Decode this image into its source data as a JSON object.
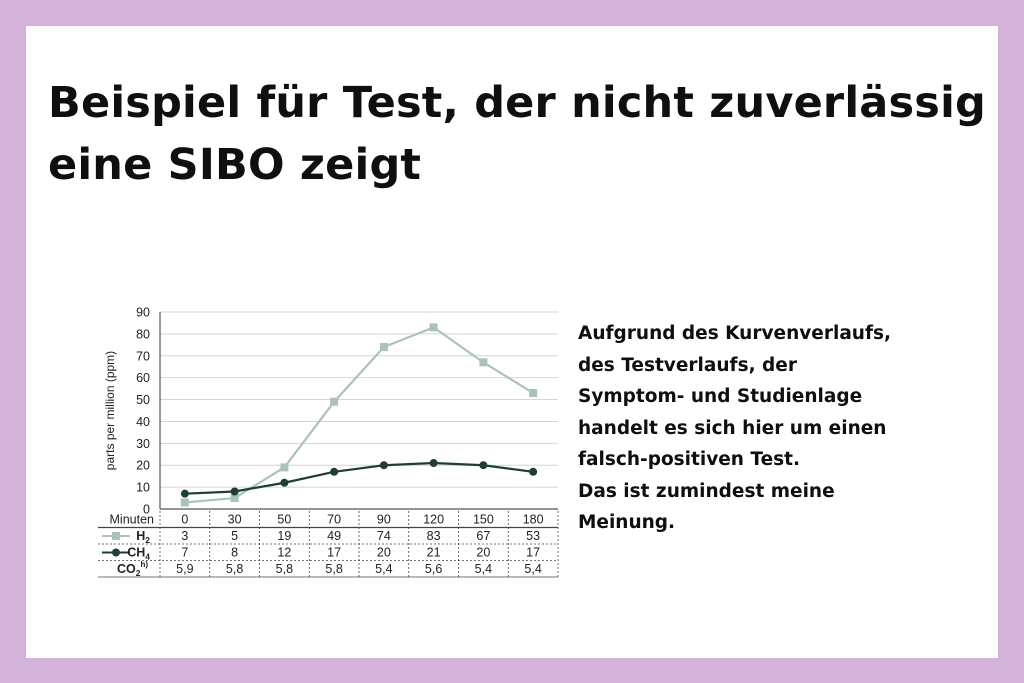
{
  "title": {
    "line1": "Beispiel für Test, der nicht zuverlässig",
    "line2": "eine SIBO zeigt"
  },
  "side_text": {
    "lines": [
      "Aufgrund des Kurvenverlaufs,",
      "des Testverlaufs, der",
      "Symptom- und Studienlage",
      "handelt es sich hier um einen",
      "falsch-positiven Test.",
      "Das ist zumindest meine",
      "Meinung."
    ]
  },
  "chart_data": {
    "type": "line",
    "ylabel": "parts per million (ppm)",
    "xlabel": "Minuten",
    "ylim": [
      0,
      90
    ],
    "yticks": [
      0,
      10,
      20,
      30,
      40,
      50,
      60,
      70,
      80,
      90
    ],
    "grid": true,
    "categories": [
      "0",
      "30",
      "50",
      "70",
      "90",
      "120",
      "150",
      "180"
    ],
    "series": [
      {
        "name": "H",
        "sub": "2",
        "values": [
          3,
          5,
          19,
          49,
          74,
          83,
          67,
          53
        ],
        "color": "#a9c4b5",
        "marker": "square"
      },
      {
        "name": "CH",
        "sub": "4",
        "values": [
          7,
          8,
          12,
          17,
          20,
          21,
          20,
          17
        ],
        "color": "#1f3d3a",
        "marker": "circle"
      }
    ],
    "table_row": {
      "name": "CO",
      "sub": "2",
      "sup": "h)",
      "values": [
        "5,9",
        "5,8",
        "5,8",
        "5,8",
        "5,4",
        "5,6",
        "5,4",
        "5,4"
      ]
    }
  }
}
